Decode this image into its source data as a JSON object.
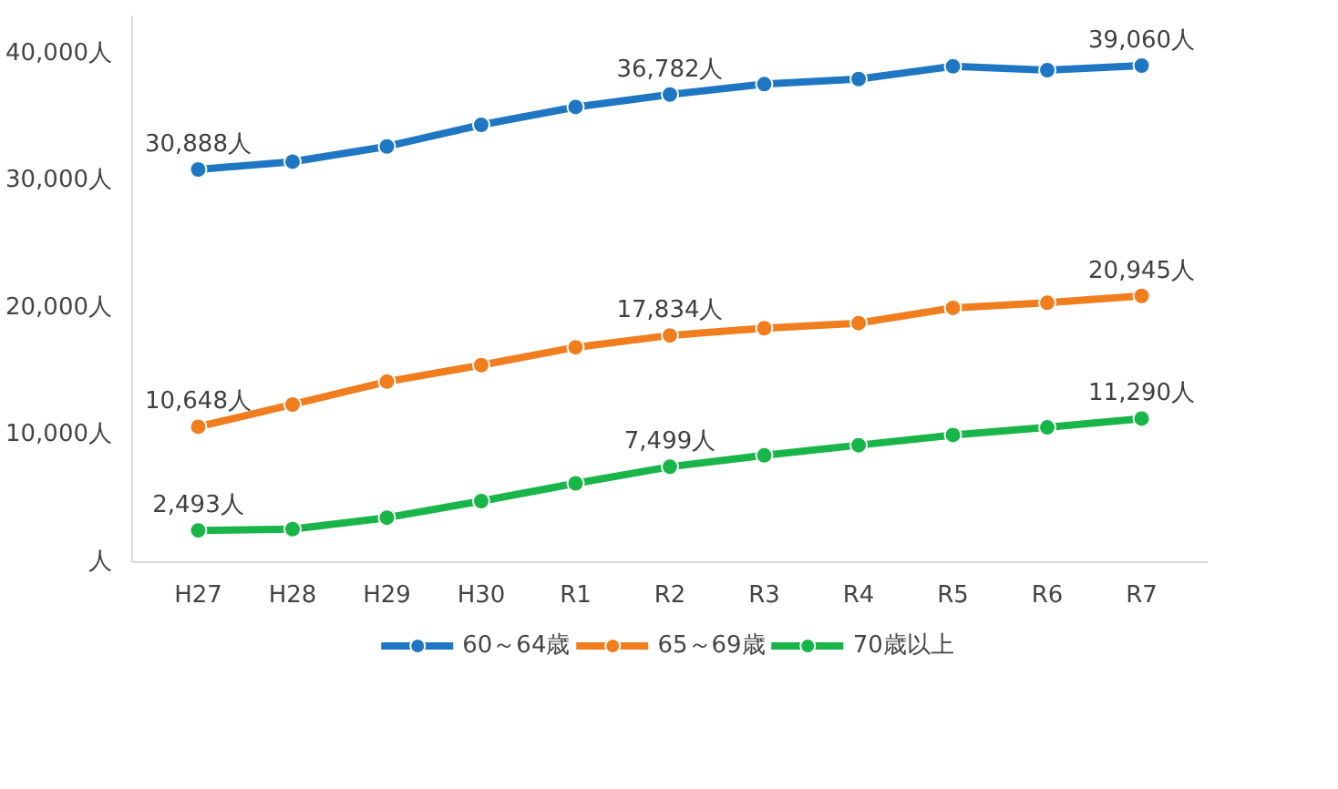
{
  "chart_data": {
    "type": "line",
    "categories": [
      "H27",
      "H28",
      "H29",
      "H30",
      "R1",
      "R2",
      "R3",
      "R4",
      "R5",
      "R6",
      "R7"
    ],
    "series": [
      {
        "name": "60～64歳",
        "color": "#1f77c4",
        "values": [
          30888,
          31500,
          32700,
          34400,
          35800,
          36782,
          37600,
          38000,
          39000,
          38700,
          39060
        ]
      },
      {
        "name": "65～69歳",
        "color": "#f07d1e",
        "values": [
          10648,
          12400,
          14200,
          15500,
          16900,
          17834,
          18400,
          18800,
          20000,
          20400,
          20945
        ]
      },
      {
        "name": "70歳以上",
        "color": "#18b548",
        "values": [
          2493,
          2600,
          3500,
          4800,
          6200,
          7499,
          8400,
          9200,
          10000,
          10600,
          11290
        ]
      }
    ],
    "ylim": [
      0,
      43000
    ],
    "yticks": [
      {
        "value": 0,
        "label": "人"
      },
      {
        "value": 10000,
        "label": "10,000人"
      },
      {
        "value": 20000,
        "label": "20,000人"
      },
      {
        "value": 30000,
        "label": "30,000人"
      },
      {
        "value": 40000,
        "label": "40,000人"
      }
    ],
    "annotations": [
      {
        "text": "30,888人",
        "x": "H27",
        "y": 30888
      },
      {
        "text": "36,782人",
        "x": "R2",
        "y": 36782
      },
      {
        "text": "39,060人",
        "x": "R7",
        "y": 39060
      },
      {
        "text": "10,648人",
        "x": "H27",
        "y": 10648
      },
      {
        "text": "17,834人",
        "x": "R2",
        "y": 17834
      },
      {
        "text": "20,945人",
        "x": "R7",
        "y": 20945
      },
      {
        "text": "2,493人",
        "x": "H27",
        "y": 2493
      },
      {
        "text": "7,499人",
        "x": "R2",
        "y": 7499
      },
      {
        "text": "11,290人",
        "x": "R7",
        "y": 11290
      }
    ],
    "grid": false,
    "legend": "bottom",
    "marker": "circle",
    "line_style": "solid"
  }
}
